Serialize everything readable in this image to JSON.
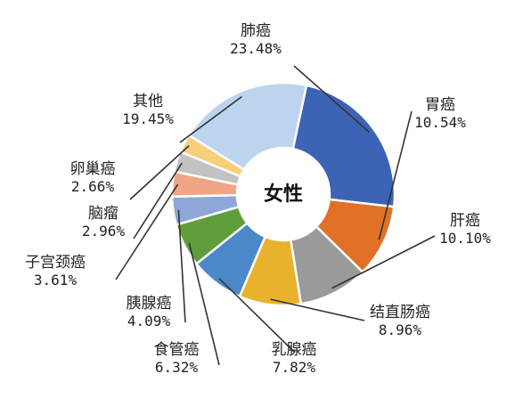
{
  "chart_data": {
    "type": "pie",
    "center_label": "女性",
    "categories": [
      "肺癌",
      "胃癌",
      "肝癌",
      "结直肠癌",
      "乳腺癌",
      "食管癌",
      "胰腺癌",
      "子宫颈癌",
      "脑瘤",
      "卵巢癌",
      "其他"
    ],
    "values": [
      23.48,
      10.54,
      10.1,
      8.96,
      7.82,
      6.32,
      4.09,
      3.61,
      2.96,
      2.66,
      19.45
    ],
    "value_labels": [
      "23.48%",
      "10.54%",
      "10.10%",
      "8.96%",
      "7.82%",
      "6.32%",
      "4.09%",
      "3.61%",
      "2.96%",
      "2.66%",
      "19.45%"
    ],
    "colors": [
      "#3d64b4",
      "#e07126",
      "#9a9a9a",
      "#e9b22d",
      "#4b88c9",
      "#5f9e3a",
      "#8fa6d8",
      "#f0a686",
      "#c2c2c2",
      "#f7cf78",
      "#bcd4ee"
    ],
    "inner_hole": true,
    "legend": "none"
  }
}
